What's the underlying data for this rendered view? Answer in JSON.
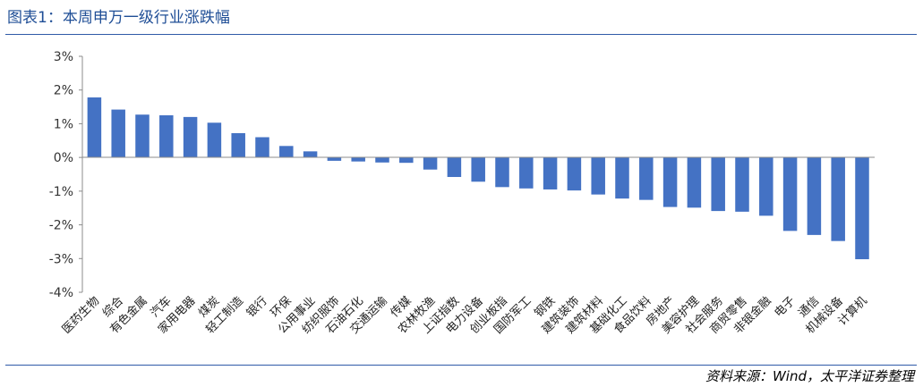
{
  "title": "图表1：本周申万一级行业涨跌幅",
  "source": "资料来源：Wind，太平洋证券整理",
  "colors": {
    "bar": "#4472c4",
    "rule": "#2f5aa8",
    "title": "#1f4e96"
  },
  "chart_data": {
    "type": "bar",
    "title": "图表1：本周申万一级行业涨跌幅",
    "ylim": [
      -4,
      3
    ],
    "ytick_values": [
      3,
      2,
      1,
      0,
      -1,
      -2,
      -3,
      -4
    ],
    "ytick_labels": [
      "3%",
      "2%",
      "1%",
      "0%",
      "-1%",
      "-2%",
      "-3%",
      "-4%"
    ],
    "grid": false,
    "categories": [
      "医药生物",
      "综合",
      "有色金属",
      "汽车",
      "家用电器",
      "煤炭",
      "轻工制造",
      "银行",
      "环保",
      "公用事业",
      "纺织服饰",
      "石油石化",
      "交通运输",
      "传媒",
      "农林牧渔",
      "上证指数",
      "电力设备",
      "创业板指",
      "国防军工",
      "钢铁",
      "建筑装饰",
      "建筑材料",
      "基础化工",
      "食品饮料",
      "房地产",
      "美容护理",
      "社会服务",
      "商贸零售",
      "非银金融",
      "电子",
      "通信",
      "机械设备",
      "计算机"
    ],
    "values": [
      1.78,
      1.42,
      1.27,
      1.25,
      1.2,
      1.03,
      0.72,
      0.6,
      0.34,
      0.18,
      -0.1,
      -0.12,
      -0.15,
      -0.16,
      -0.36,
      -0.58,
      -0.72,
      -0.88,
      -0.92,
      -0.95,
      -0.98,
      -1.1,
      -1.22,
      -1.26,
      -1.47,
      -1.49,
      -1.59,
      -1.61,
      -1.73,
      -2.18,
      -2.3,
      -2.48,
      -3.02
    ]
  }
}
